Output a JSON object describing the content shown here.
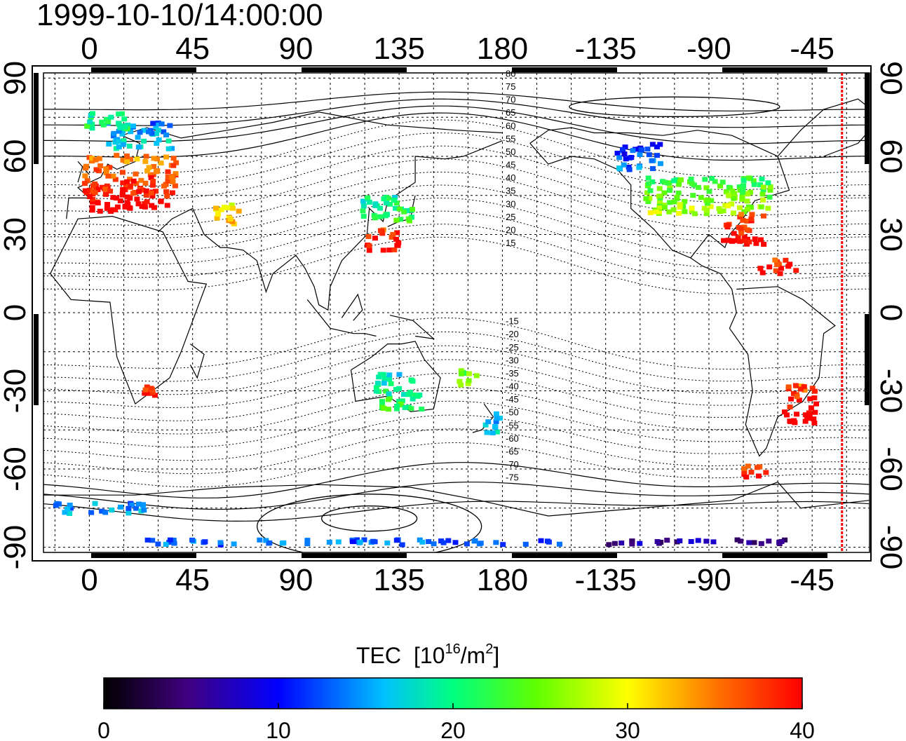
{
  "title": "1999-10-10/14:00:00",
  "map": {
    "lon_ticks_top": [
      "0",
      "45",
      "90",
      "135",
      "180",
      "-135",
      "-90",
      "-45"
    ],
    "lon_ticks_bottom": [
      "0",
      "45",
      "90",
      "135",
      "180",
      "-135",
      "-90",
      "-45"
    ],
    "lat_ticks_left": [
      "90",
      "60",
      "30",
      "0",
      "-30",
      "-60",
      "-90"
    ],
    "lat_ticks_right": [
      "90",
      "60",
      "30",
      "0",
      "-30",
      "-60",
      "-90"
    ],
    "lon_tick_values": [
      0,
      45,
      90,
      135,
      180,
      225,
      270,
      315
    ],
    "lat_tick_values": [
      90,
      60,
      30,
      0,
      -30,
      -60,
      -90
    ],
    "lon_range": [
      -20,
      340
    ],
    "lat_range": [
      -92,
      92
    ],
    "grid": true,
    "contour_labels": [
      "80",
      "75",
      "70",
      "65",
      "60",
      "55",
      "50",
      "45",
      "40",
      "35",
      "30",
      "25",
      "20",
      "15",
      "-15",
      "-20",
      "-25",
      "-30",
      "-35",
      "-40",
      "-45",
      "-50",
      "-55",
      "-60",
      "-65",
      "-70",
      "-75"
    ],
    "contour_values": [
      80,
      75,
      70,
      65,
      60,
      55,
      50,
      45,
      40,
      35,
      30,
      25,
      20,
      15,
      -15,
      -20,
      -25,
      -30,
      -35,
      -40,
      -45,
      -50,
      -55,
      -60,
      -65,
      -70,
      -75
    ],
    "terminator_lon": 328
  },
  "colorbar": {
    "title": "TEC",
    "unit_prefix": "[10",
    "unit_exp1": "16",
    "unit_mid": "/m",
    "unit_exp2": "2",
    "unit_suffix": "]",
    "tick_labels": [
      "0",
      "10",
      "20",
      "30",
      "40"
    ],
    "tick_values": [
      0,
      10,
      20,
      30,
      40
    ],
    "range": [
      0,
      40
    ],
    "colormap": [
      "#000000",
      "#400080",
      "#0000ff",
      "#00ffff",
      "#00ff00",
      "#ffff00",
      "#ff0000"
    ]
  },
  "tec_regions": [
    {
      "lon": 18,
      "lat": 50,
      "w": 40,
      "h": 22,
      "tec": 38
    },
    {
      "lon": 22,
      "lat": 68,
      "w": 28,
      "h": 10,
      "tec": 16
    },
    {
      "lon": 8,
      "lat": 74,
      "w": 18,
      "h": 8,
      "tec": 20
    },
    {
      "lon": 60,
      "lat": 38,
      "w": 12,
      "h": 8,
      "tec": 31
    },
    {
      "lon": 130,
      "lat": 40,
      "w": 22,
      "h": 10,
      "tec": 21
    },
    {
      "lon": 128,
      "lat": 28,
      "w": 14,
      "h": 8,
      "tec": 39
    },
    {
      "lon": 270,
      "lat": 45,
      "w": 55,
      "h": 14,
      "tec": 25
    },
    {
      "lon": 285,
      "lat": 32,
      "w": 18,
      "h": 12,
      "tec": 39
    },
    {
      "lon": 240,
      "lat": 60,
      "w": 20,
      "h": 10,
      "tec": 12
    },
    {
      "lon": 300,
      "lat": 18,
      "w": 16,
      "h": 6,
      "tec": 39
    },
    {
      "lon": 310,
      "lat": -35,
      "w": 14,
      "h": 16,
      "tec": 39
    },
    {
      "lon": 290,
      "lat": -60,
      "w": 10,
      "h": 6,
      "tec": 38
    },
    {
      "lon": 135,
      "lat": -30,
      "w": 20,
      "h": 14,
      "tec": 20
    },
    {
      "lon": 175,
      "lat": -42,
      "w": 8,
      "h": 8,
      "tec": 16
    },
    {
      "lon": 165,
      "lat": -25,
      "w": 10,
      "h": 6,
      "tec": 25
    },
    {
      "lon": 25,
      "lat": -30,
      "w": 8,
      "h": 6,
      "tec": 39
    },
    {
      "lon": 5,
      "lat": -75,
      "w": 40,
      "h": 4,
      "tec": 15
    },
    {
      "lon": 115,
      "lat": -88,
      "w": 180,
      "h": 2,
      "tec": 13
    },
    {
      "lon": 265,
      "lat": -88,
      "w": 80,
      "h": 2,
      "tec": 6
    }
  ]
}
